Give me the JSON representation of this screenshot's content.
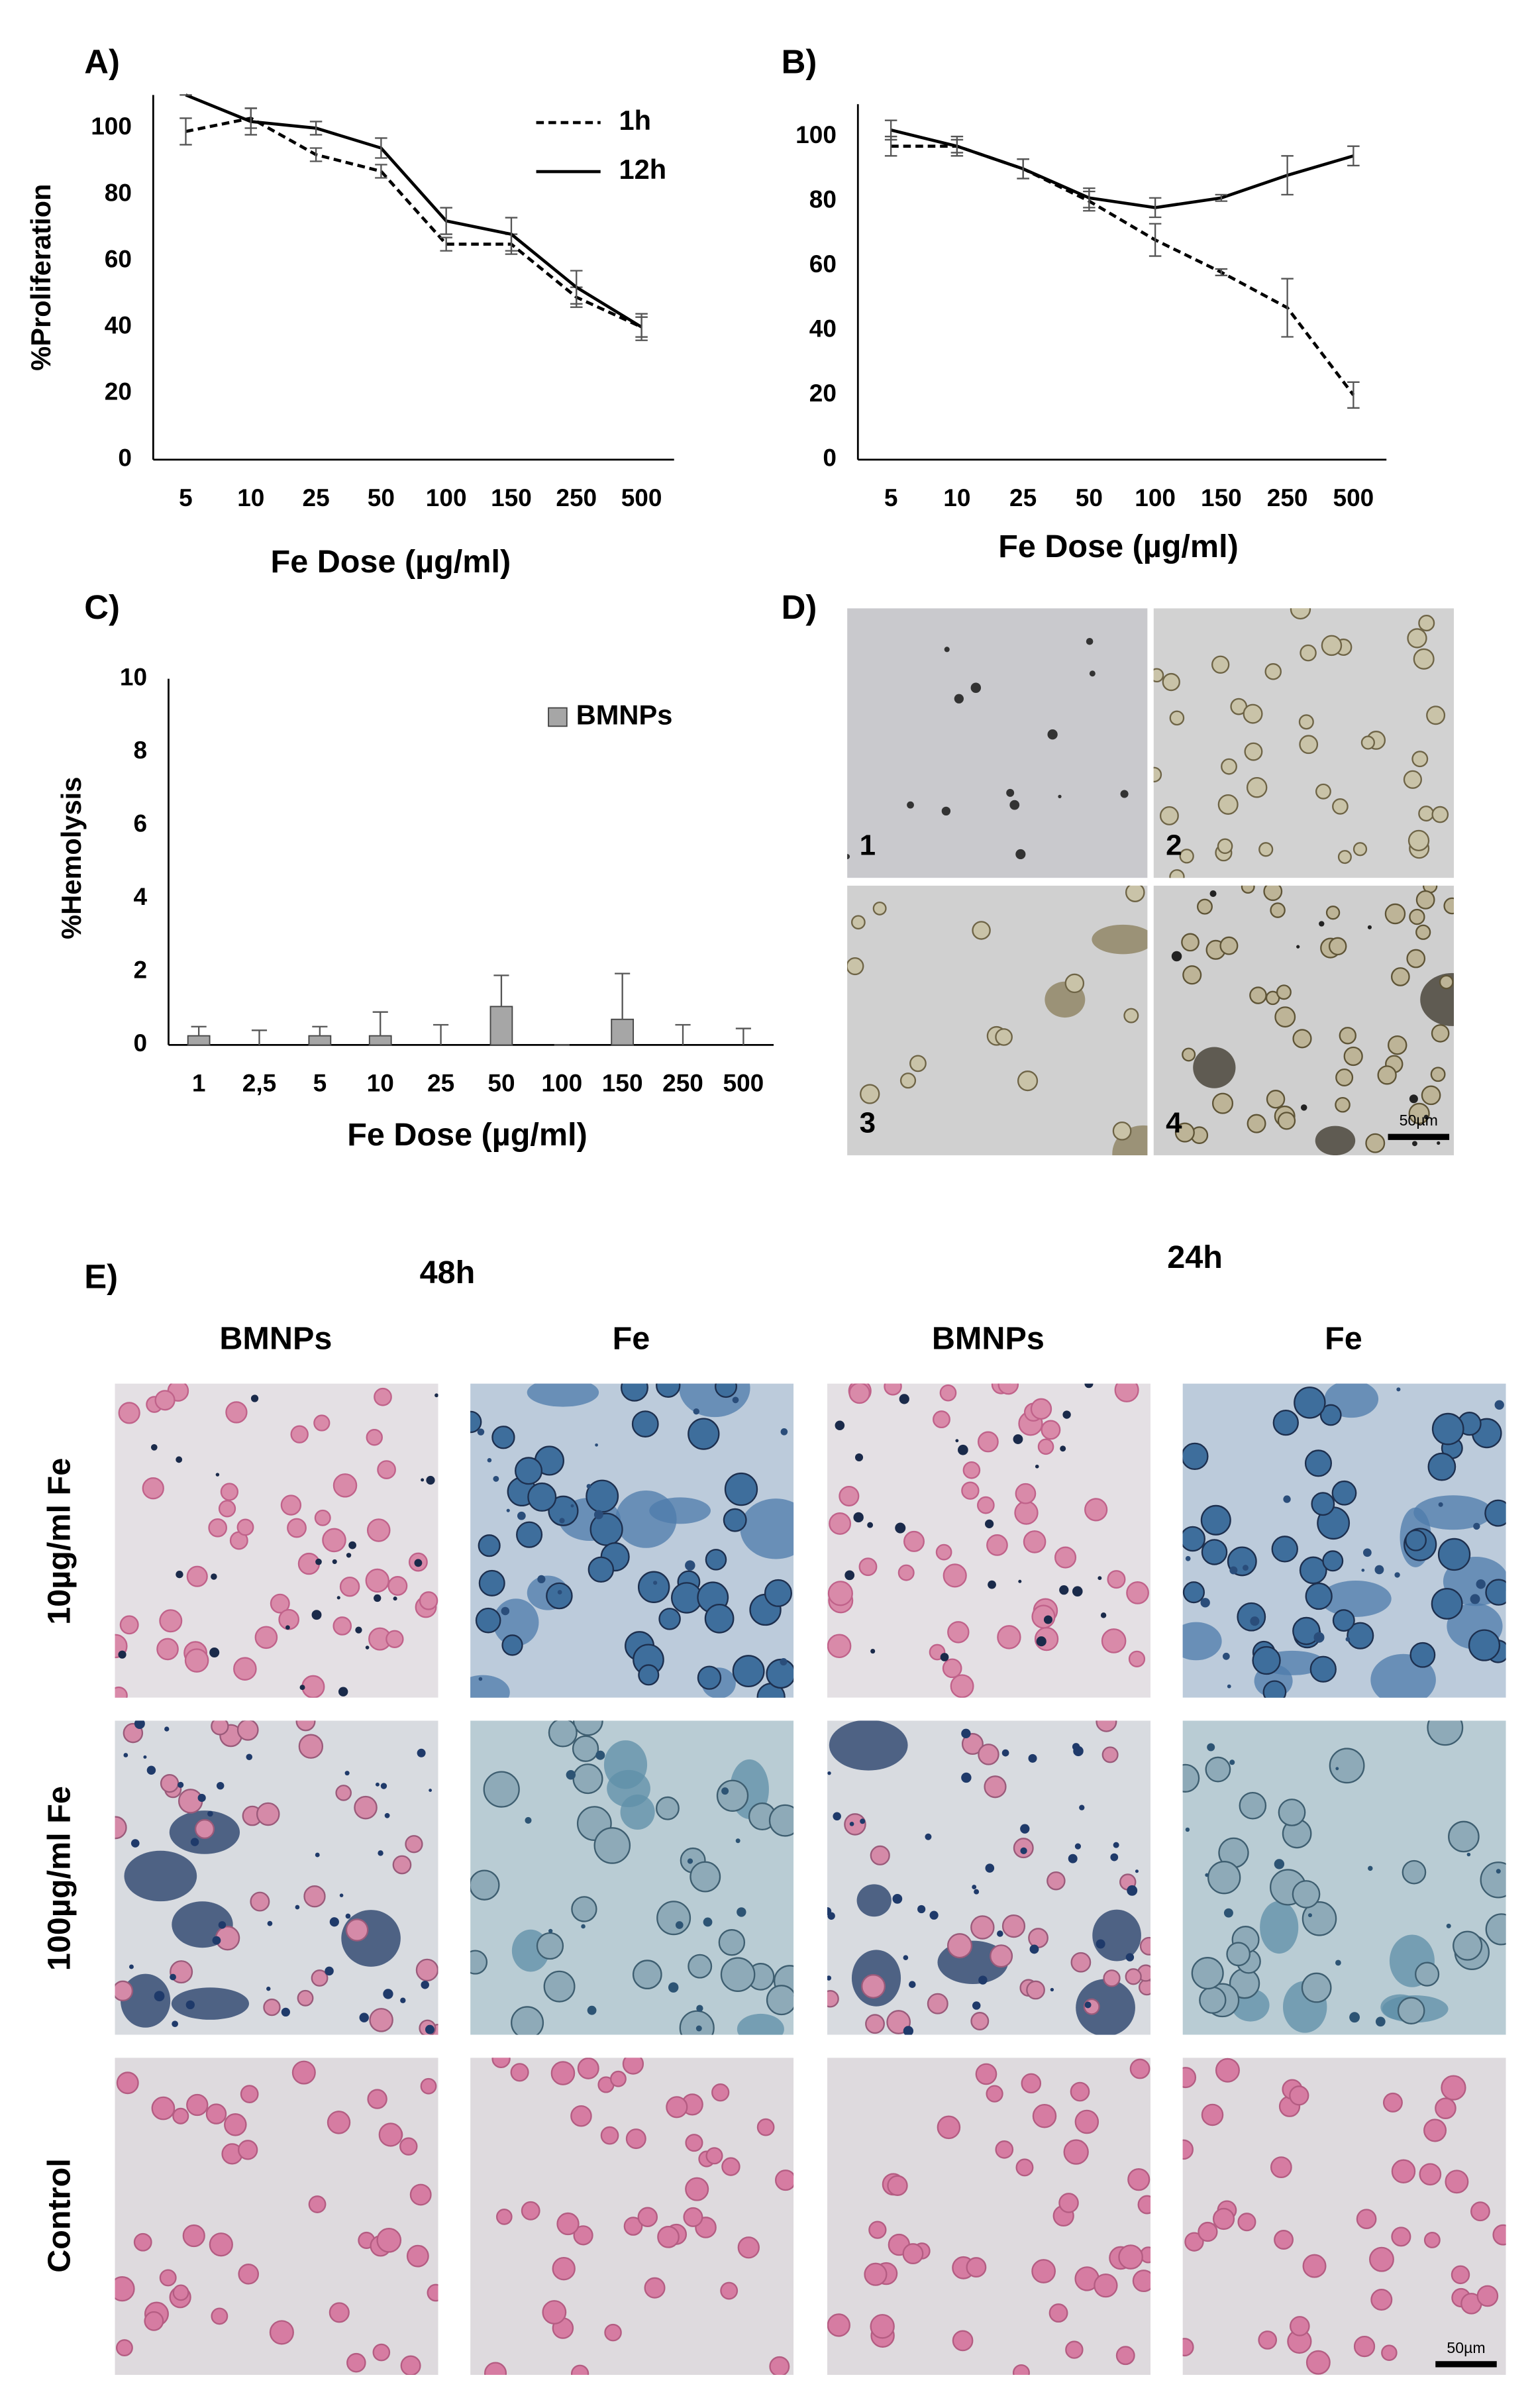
{
  "chart_data": [
    {
      "type": "line",
      "label": "A)",
      "ylabel": "%Proliferation",
      "xlabel": "Fe Dose (µg/ml)",
      "categories": [
        "5",
        "10",
        "25",
        "50",
        "100",
        "150",
        "250",
        "500"
      ],
      "series": [
        {
          "name": "1h",
          "color": "#000000",
          "line_style": "dashed",
          "values": [
            99,
            103,
            92,
            87,
            65,
            65,
            49,
            40
          ],
          "errors": [
            4,
            3,
            2,
            2,
            2,
            3,
            3,
            3
          ]
        },
        {
          "name": "12h",
          "color": "#000000",
          "line_style": "solid",
          "values": [
            110,
            102,
            100,
            94,
            72,
            68,
            52,
            40
          ],
          "errors": [
            0,
            4,
            2,
            3,
            4,
            5,
            5,
            4
          ]
        }
      ],
      "ylim": [
        0,
        110
      ],
      "yticks": [
        0,
        20,
        40,
        60,
        80,
        100
      ],
      "legend": "upper right"
    },
    {
      "type": "line",
      "label": "B)",
      "xlabel": "Fe Dose (µg/ml)",
      "categories": [
        "5",
        "10",
        "25",
        "50",
        "100",
        "150",
        "250",
        "500"
      ],
      "series": [
        {
          "color": "#000000",
          "line_style": "dashed",
          "values": [
            97,
            97,
            90,
            80,
            68,
            58,
            47,
            20
          ],
          "errors": [
            3,
            2,
            3,
            3,
            5,
            1,
            9,
            4
          ]
        },
        {
          "color": "#000000",
          "line_style": "solid",
          "values": [
            102,
            97,
            90,
            81,
            78,
            81,
            88,
            94
          ],
          "errors": [
            3,
            3,
            3,
            3,
            3,
            1,
            6,
            3
          ]
        }
      ],
      "ylim": [
        0,
        110
      ],
      "yticks": [
        0,
        20,
        40,
        60,
        80,
        100
      ]
    },
    {
      "type": "bar",
      "label": "C)",
      "ylabel": "%Hemolysis",
      "xlabel": "Fe Dose (µg/ml)",
      "categories": [
        "1",
        "2,5",
        "5",
        "10",
        "25",
        "50",
        "100",
        "150",
        "250",
        "500"
      ],
      "series": [
        {
          "name": "BMNPs",
          "color": "#a6a6a6",
          "values": [
            0.25,
            0,
            0.25,
            0.25,
            0,
            1.05,
            0,
            0.7,
            0,
            0
          ],
          "errors": [
            0.25,
            0.4,
            0.25,
            0.65,
            0.55,
            0.85,
            0,
            1.25,
            0.55,
            0.45
          ]
        }
      ],
      "ylim": [
        0,
        10
      ],
      "yticks": [
        0,
        2,
        4,
        6,
        8,
        10
      ],
      "legend": "upper right"
    }
  ],
  "panel_d": {
    "label": "D)",
    "tiles": [
      "1",
      "2",
      "3",
      "4"
    ],
    "scale_bar": "50µm"
  },
  "panel_e": {
    "label": "E)",
    "times": [
      "48h",
      "24h"
    ],
    "columns": [
      "BMNPs",
      "Fe",
      "BMNPs",
      "Fe"
    ],
    "rows": [
      "10µg/ml Fe",
      "100µg/ml Fe",
      "Control"
    ],
    "scale_bar": "50µm"
  }
}
